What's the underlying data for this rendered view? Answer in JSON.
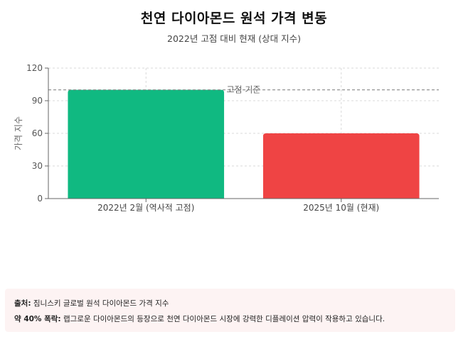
{
  "chart_data": {
    "type": "bar",
    "title": "천연 다이아몬드 원석 가격 변동",
    "subtitle": "2022년 고점 대비 현재 (상대 지수)",
    "categories": [
      "2022년 2월 (역사적 고점)",
      "2025년 10월 (현재)"
    ],
    "values": [
      100,
      60
    ],
    "bar_colors": [
      "#10b981",
      "#ef4444"
    ],
    "ylabel": "가격 지수",
    "xlabel": "",
    "ylim": [
      0,
      120
    ],
    "yticks": [
      0,
      30,
      60,
      90,
      120
    ],
    "reference_line": {
      "value": 100,
      "label": "고점 기준"
    },
    "grid": true
  },
  "notes": {
    "source_label": "출처:",
    "source_text": "짐니스키 글로벌 원석 다이아몬드 가격 지수",
    "drop_label": "약 40% 폭락:",
    "drop_text": "랩그로운 다이아몬드의 등장으로 천연 다이아몬드 시장에 강력한 디플레이션 압력이 작용하고 있습니다."
  }
}
